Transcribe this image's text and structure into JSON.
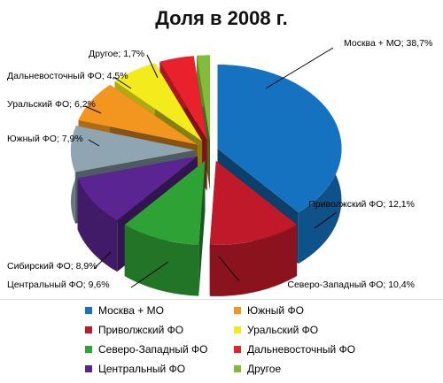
{
  "chart_data": {
    "type": "pie",
    "title": "Доля в 2008 г.",
    "unit": "%",
    "slices": [
      {
        "label": "Москва + МО",
        "value": 38.7,
        "color": "#1572C0",
        "leader": "Москва + МО; 38,7%"
      },
      {
        "label": "Приволжский ФО",
        "value": 12.1,
        "color": "#C01A2A",
        "leader": "Приволжский ФО; 12,1%"
      },
      {
        "label": "Северо-Западный ФО",
        "value": 10.4,
        "color": "#2FA236",
        "leader": "Северо-Западный ФО; 10,4%"
      },
      {
        "label": "Центральный ФО",
        "value": 9.6,
        "color": "#5A2590",
        "leader": "Центральный ФО; 9,6%"
      },
      {
        "label": "Сибирский ФО",
        "value": 8.9,
        "color": "#8FA6B2",
        "leader": "Сибирский ФО; 8,9%"
      },
      {
        "label": "Южный ФО",
        "value": 7.9,
        "color": "#F39620",
        "leader": "Южный ФО; 7,9%"
      },
      {
        "label": "Уральский ФО",
        "value": 6.2,
        "color": "#F4EB1C",
        "leader": "Уральский ФО; 6,2%"
      },
      {
        "label": "Дальневосточный ФО",
        "value": 4.5,
        "color": "#E8212C",
        "leader": "Дальневосточный ФО; 4,5%"
      },
      {
        "label": "Другое",
        "value": 1.7,
        "color": "#84BB3A",
        "leader": "Другое; 1,7%"
      }
    ],
    "legend": {
      "placement": "bottom",
      "columns": [
        [
          "Москва + МО",
          "Приволжский ФО",
          "Северо-Западный ФО",
          "Центральный ФО"
        ],
        [
          "Южный ФО",
          "Уральский ФО",
          "Дальневосточный ФО",
          "Другое"
        ]
      ]
    }
  }
}
